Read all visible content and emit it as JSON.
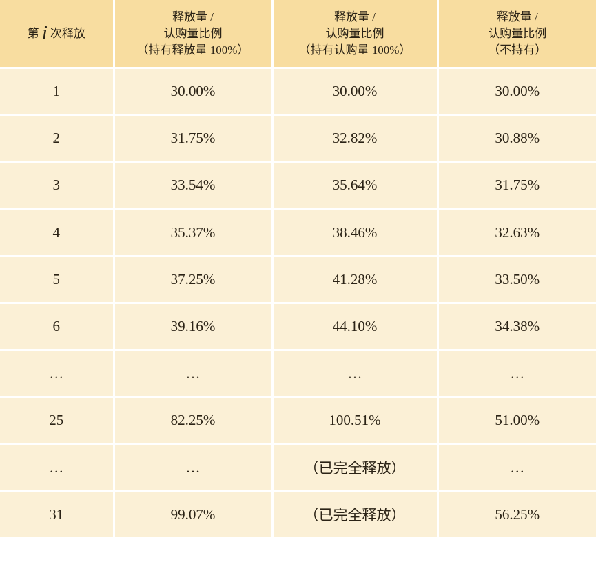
{
  "table": {
    "header": [
      [
        "第",
        "i",
        "次释放"
      ],
      [
        "释放量 /",
        "认购量比例",
        "（持有释放量 100%）"
      ],
      [
        "释放量 /",
        "认购量比例",
        "（持有认购量 100%）"
      ],
      [
        "释放量 /",
        "认购量比例",
        "（不持有）"
      ]
    ],
    "rows": [
      [
        "1",
        "30.00%",
        "30.00%",
        "30.00%"
      ],
      [
        "2",
        "31.75%",
        "32.82%",
        "30.88%"
      ],
      [
        "3",
        "33.54%",
        "35.64%",
        "31.75%"
      ],
      [
        "4",
        "35.37%",
        "38.46%",
        "32.63%"
      ],
      [
        "5",
        "37.25%",
        "41.28%",
        "33.50%"
      ],
      [
        "6",
        "39.16%",
        "44.10%",
        "34.38%"
      ],
      [
        "…",
        "…",
        "…",
        "…"
      ],
      [
        "25",
        "82.25%",
        "100.51%",
        "51.00%"
      ],
      [
        "…",
        "…",
        "（已完全释放）",
        "…"
      ],
      [
        "31",
        "99.07%",
        "（已完全释放）",
        "56.25%"
      ]
    ]
  }
}
